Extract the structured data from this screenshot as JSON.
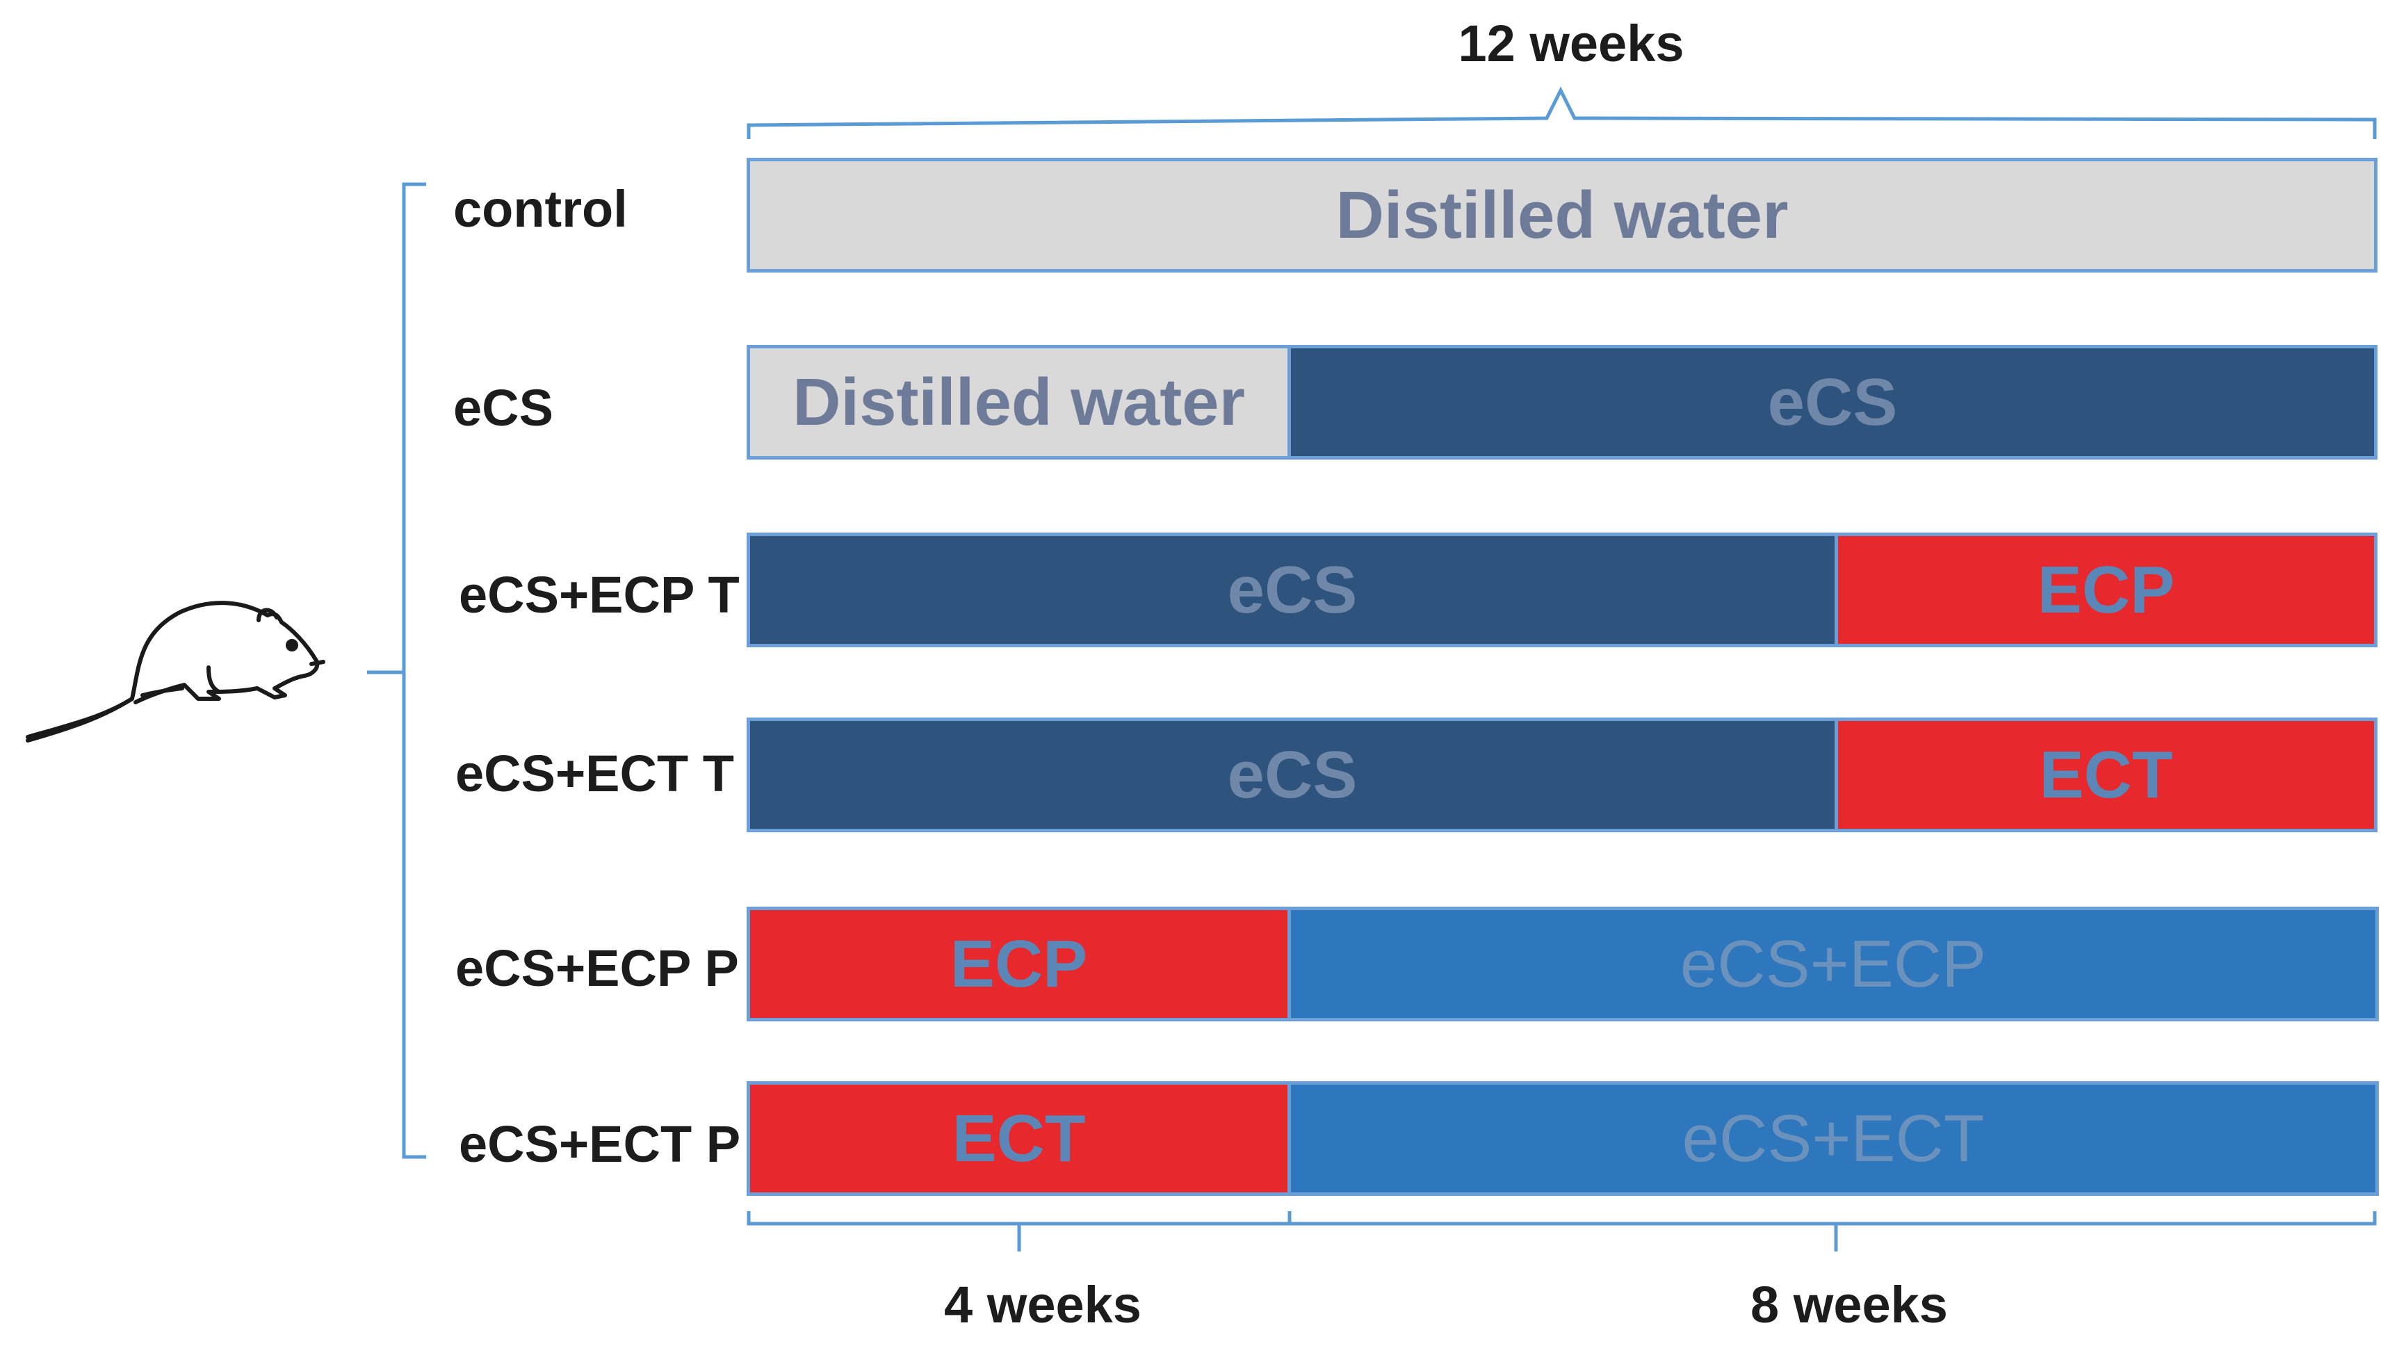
{
  "figure": {
    "top_span_label": "12 weeks",
    "bottom_labels": [
      "4 weeks",
      "8 weeks"
    ],
    "groups": [
      {
        "label": "control",
        "segments": [
          {
            "text": "Distilled water",
            "fill": "gray",
            "weeks": 12
          }
        ]
      },
      {
        "label": "eCS",
        "segments": [
          {
            "text": "Distilled water",
            "fill": "gray",
            "weeks": 4
          },
          {
            "text": "eCS",
            "fill": "navy",
            "weeks": 8
          }
        ]
      },
      {
        "label": "eCS+ECP T",
        "segments": [
          {
            "text": "eCS",
            "fill": "navy",
            "weeks": 8
          },
          {
            "text": "ECP",
            "fill": "red",
            "weeks": 4
          }
        ]
      },
      {
        "label": "eCS+ECT T",
        "segments": [
          {
            "text": "eCS",
            "fill": "navy",
            "weeks": 8
          },
          {
            "text": "ECT",
            "fill": "red",
            "weeks": 4
          }
        ]
      },
      {
        "label": "eCS+ECP P",
        "segments": [
          {
            "text": "ECP",
            "fill": "red",
            "weeks": 4
          },
          {
            "text": "eCS+ECP",
            "fill": "blue",
            "weeks": 8
          }
        ]
      },
      {
        "label": "eCS+ECT P",
        "segments": [
          {
            "text": "ECT",
            "fill": "red",
            "weeks": 4
          },
          {
            "text": "eCS+ECT",
            "fill": "blue",
            "weeks": 8
          }
        ]
      }
    ]
  },
  "colors": {
    "gray": "#d9d9d9",
    "navy": "#2e537c",
    "red": "#e7282c",
    "blue": "#2f77bc",
    "bracket": "#5b9bd5"
  },
  "icons": {
    "animal": "rat-icon"
  }
}
